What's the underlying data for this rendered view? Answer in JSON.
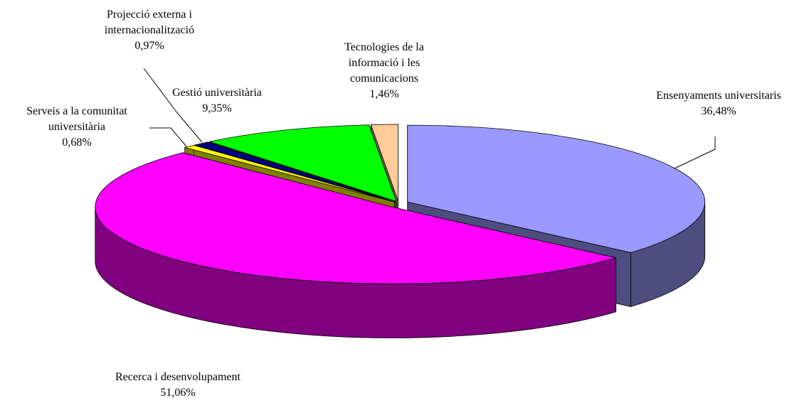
{
  "chart_data": {
    "type": "pie",
    "categories": [
      "Ensenyaments universitaris",
      "Recerca i desenvolupament",
      "Serveis a la comunitat universitària",
      "Projecció externa i internacionalització",
      "Gestió universitària",
      "Tecnologies de la informació i les comunicacions"
    ],
    "values": [
      36.48,
      51.06,
      0.68,
      0.97,
      9.35,
      1.46
    ],
    "value_labels": [
      "36,48%",
      "51,06%",
      "0,68%",
      "0,97%",
      "9,35%",
      "1,46%"
    ],
    "colors": [
      "#9999ff",
      "#ff00ff",
      "#ffff00",
      "#000080",
      "#00ff00",
      "#ffcc99"
    ]
  }
}
